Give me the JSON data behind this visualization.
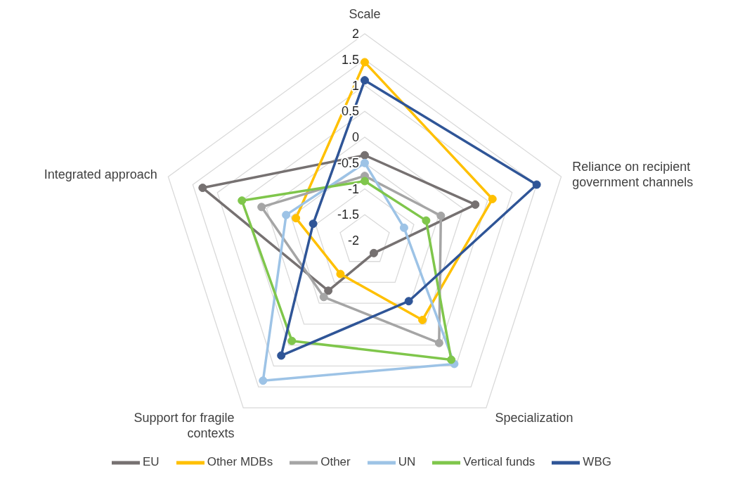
{
  "chart_data": {
    "type": "radar",
    "categories": [
      "Scale",
      "Reliance on recipient government channels",
      "Specialization",
      "Support for fragile contexts",
      "Integrated approach"
    ],
    "ylim": [
      -2,
      2
    ],
    "yticks": [
      -2,
      -1.5,
      -1,
      -0.5,
      0,
      0.5,
      1,
      1.5,
      2
    ],
    "grid": true,
    "legend": "bottom",
    "marker": "circle",
    "line_style": "solid",
    "series": [
      {
        "name": "EU",
        "color": "#767171",
        "values": [
          -0.35,
          0.25,
          -1.7,
          -0.8,
          1.3
        ]
      },
      {
        "name": "Other MDBs",
        "color": "#ffc000",
        "values": [
          1.45,
          0.6,
          -0.1,
          -1.2,
          -0.6
        ]
      },
      {
        "name": "Other",
        "color": "#a5a5a5",
        "values": [
          -0.75,
          -0.45,
          0.45,
          -0.65,
          0.1
        ]
      },
      {
        "name": "UN",
        "color": "#9dc3e6",
        "values": [
          -0.5,
          -1.2,
          0.95,
          1.35,
          -0.4
        ]
      },
      {
        "name": "Vertical funds",
        "color": "#7fc64b",
        "values": [
          -0.85,
          -0.75,
          0.85,
          0.4,
          0.5
        ]
      },
      {
        "name": "WBG",
        "color": "#2f5597",
        "values": [
          1.1,
          1.5,
          -0.55,
          0.75,
          -0.95
        ]
      }
    ]
  }
}
